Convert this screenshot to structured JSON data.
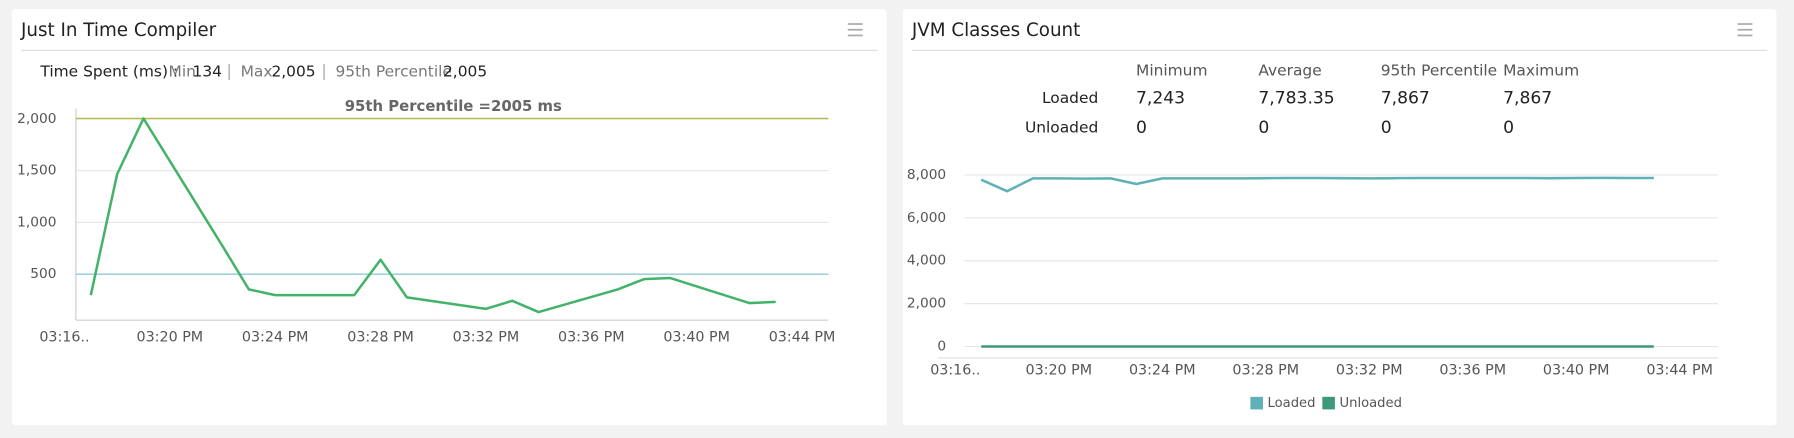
{
  "chart_data": [
    {
      "type": "line",
      "title": "Just In Time Compiler",
      "summary": {
        "label": "Time Spent (ms) :",
        "items": [
          {
            "name": "Min",
            "value": "134"
          },
          {
            "name": "Max",
            "value": "2,005"
          },
          {
            "name": "95th Percentile",
            "value": "2,005"
          }
        ]
      },
      "x": [
        "03:17 PM",
        "03:18 PM",
        "03:19 PM",
        "03:22 PM",
        "03:23 PM",
        "03:24 PM",
        "03:25 PM",
        "03:26 PM",
        "03:27 PM",
        "03:28 PM",
        "03:29 PM",
        "03:32 PM",
        "03:33 PM",
        "03:34 PM",
        "03:37 PM",
        "03:38 PM",
        "03:39 PM",
        "03:42 PM",
        "03:43 PM"
      ],
      "series": [
        {
          "name": "Time Spent",
          "color": "#43b36a",
          "values": [
            298,
            1467,
            2005,
            772,
            353,
            298,
            298,
            298,
            298,
            640,
            276,
            165,
            243,
            134,
            353,
            452,
            463,
            221,
            232
          ]
        }
      ],
      "threshold_lines": [
        {
          "value": 2005,
          "label": "95th Percentile =2005 ms",
          "color": "#b8bb4c"
        },
        {
          "value": 500,
          "color": "#93c8d8"
        }
      ],
      "xlim": [
        "03:16 PM",
        "03:45 PM"
      ],
      "xticks": [
        {
          "value": "03:16 PM",
          "label": "03:16.."
        },
        "03:20 PM",
        "03:24 PM",
        "03:28 PM",
        "03:32 PM",
        "03:36 PM",
        "03:40 PM",
        "03:44 PM"
      ],
      "ylim": [
        0,
        2100
      ],
      "yticks": [
        500,
        {
          "value": 1000,
          "label": "1,000"
        },
        {
          "value": 1500,
          "label": "1,500"
        },
        {
          "value": 2000,
          "label": "2,000"
        }
      ],
      "grid": true
    },
    {
      "type": "line",
      "title": "JVM Classes Count",
      "stats": {
        "columns": [
          "Minimum",
          "Average",
          "95th Percentile",
          "Maximum"
        ],
        "rows": [
          {
            "label": "Loaded",
            "values": [
              "7,243",
              "7,783.35",
              "7,867",
              "7,867"
            ]
          },
          {
            "label": "Unloaded",
            "values": [
              "0",
              "0",
              "0",
              "0"
            ]
          }
        ]
      },
      "x": [
        "03:17 PM",
        "03:18 PM",
        "03:19 PM",
        "03:20 PM",
        "03:21 PM",
        "03:22 PM",
        "03:23 PM",
        "03:24 PM",
        "03:25 PM",
        "03:26 PM",
        "03:27 PM",
        "03:28 PM",
        "03:29 PM",
        "03:30 PM",
        "03:31 PM",
        "03:32 PM",
        "03:33 PM",
        "03:34 PM",
        "03:35 PM",
        "03:36 PM",
        "03:37 PM",
        "03:38 PM",
        "03:39 PM",
        "03:40 PM",
        "03:41 PM",
        "03:42 PM",
        "03:43 PM"
      ],
      "series": [
        {
          "name": "Loaded",
          "color": "#5fb1b8",
          "values": [
            7780,
            7243,
            7840,
            7840,
            7830,
            7840,
            7580,
            7840,
            7840,
            7840,
            7840,
            7850,
            7860,
            7860,
            7850,
            7840,
            7850,
            7860,
            7860,
            7860,
            7860,
            7860,
            7850,
            7860,
            7867,
            7860,
            7860
          ]
        },
        {
          "name": "Unloaded",
          "color": "#3d9a78",
          "values": [
            0,
            0,
            0,
            0,
            0,
            0,
            0,
            0,
            0,
            0,
            0,
            0,
            0,
            0,
            0,
            0,
            0,
            0,
            0,
            0,
            0,
            0,
            0,
            0,
            0,
            0,
            0
          ]
        }
      ],
      "xlim": [
        "03:16 PM",
        "03:45 PM"
      ],
      "xticks": [
        {
          "value": "03:16 PM",
          "label": "03:16.."
        },
        "03:20 PM",
        "03:24 PM",
        "03:28 PM",
        "03:32 PM",
        "03:36 PM",
        "03:40 PM",
        "03:44 PM"
      ],
      "ylim": [
        0,
        8000
      ],
      "yticks": [
        0,
        {
          "value": 2000,
          "label": "2,000"
        },
        {
          "value": 4000,
          "label": "4,000"
        },
        {
          "value": 6000,
          "label": "6,000"
        },
        {
          "value": 8000,
          "label": "8,000"
        }
      ],
      "grid": true,
      "legend": "bottom"
    }
  ]
}
